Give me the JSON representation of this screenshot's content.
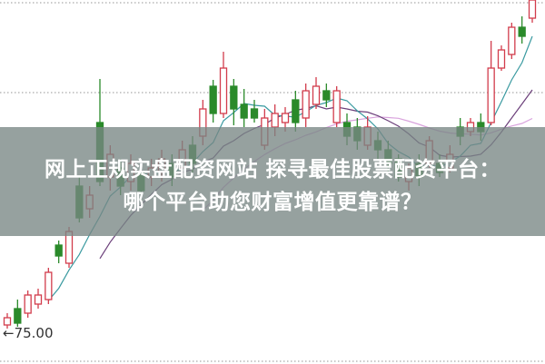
{
  "overlay": {
    "line1": "网上正规实盘配资网站 探寻最佳股票配资平台：",
    "line2": "哪个平台助您财富增值更靠谱？"
  },
  "chart_data": {
    "type": "candlestick",
    "title": "",
    "xlabel": "",
    "ylabel": "",
    "ylim": [
      71.7,
      111.8
    ],
    "grid": true,
    "grid_style": "dotted",
    "annotation": {
      "text": "←75.00",
      "value": 75.0
    },
    "colors": {
      "up": "#d23c4c",
      "down": "#2a8a2a",
      "ma5": "#3a9aa0",
      "ma10": "#6b3f7a",
      "ma20": "#d9a3dd",
      "grid": "#aaaaaa"
    },
    "moving_averages": [
      5,
      10,
      20
    ],
    "candles_ohlc": [
      [
        76.0,
        77.3,
        75.6,
        76.8
      ],
      [
        77.8,
        78.8,
        75.8,
        76.2
      ],
      [
        77.3,
        79.8,
        76.8,
        79.3
      ],
      [
        78.3,
        80.0,
        77.8,
        79.3
      ],
      [
        78.8,
        82.3,
        78.3,
        81.8
      ],
      [
        84.8,
        85.3,
        82.8,
        83.6
      ],
      [
        82.8,
        86.8,
        82.3,
        86.3
      ],
      [
        91.3,
        92.3,
        87.3,
        87.8
      ],
      [
        88.8,
        91.3,
        87.8,
        90.3
      ],
      [
        98.3,
        103.1,
        91.3,
        91.8
      ],
      [
        92.3,
        95.8,
        90.8,
        94.8
      ],
      [
        93.3,
        94.3,
        90.3,
        91.3
      ],
      [
        91.8,
        94.8,
        90.8,
        93.8
      ],
      [
        92.8,
        93.8,
        89.8,
        90.8
      ],
      [
        92.3,
        94.3,
        91.3,
        93.3
      ],
      [
        92.8,
        95.3,
        91.8,
        94.3
      ],
      [
        93.8,
        94.8,
        91.3,
        92.3
      ],
      [
        93.3,
        96.3,
        92.3,
        95.3
      ],
      [
        95.8,
        96.8,
        92.8,
        93.8
      ],
      [
        96.8,
        100.8,
        95.8,
        99.8
      ],
      [
        102.3,
        103.0,
        98.3,
        99.3
      ],
      [
        99.3,
        106.1,
        98.8,
        104.3
      ],
      [
        102.3,
        103.1,
        98.0,
        99.8
      ],
      [
        100.3,
        102.0,
        97.8,
        98.8
      ],
      [
        99.8,
        100.8,
        98.3,
        98.8
      ],
      [
        95.8,
        99.8,
        95.3,
        98.8
      ],
      [
        97.8,
        100.3,
        96.8,
        99.3
      ],
      [
        98.3,
        100.0,
        97.3,
        99.3
      ],
      [
        100.8,
        101.8,
        97.3,
        98.3
      ],
      [
        98.8,
        102.6,
        97.8,
        101.8
      ],
      [
        100.3,
        103.3,
        99.8,
        102.3
      ],
      [
        101.8,
        102.6,
        100.0,
        100.8
      ],
      [
        98.3,
        102.3,
        97.8,
        101.8
      ],
      [
        98.3,
        99.3,
        95.8,
        96.8
      ],
      [
        97.8,
        98.8,
        95.3,
        96.3
      ],
      [
        95.8,
        99.0,
        95.3,
        97.8
      ],
      [
        96.3,
        97.3,
        94.3,
        95.3
      ],
      [
        95.3,
        96.3,
        92.8,
        93.8
      ],
      [
        94.3,
        94.8,
        91.8,
        92.3
      ],
      [
        91.8,
        93.8,
        90.8,
        93.3
      ],
      [
        93.8,
        94.8,
        91.3,
        92.3
      ],
      [
        93.8,
        96.8,
        93.3,
        96.3
      ],
      [
        93.8,
        94.8,
        92.3,
        92.8
      ],
      [
        93.3,
        95.8,
        92.8,
        94.8
      ],
      [
        97.8,
        98.8,
        95.8,
        96.8
      ],
      [
        97.3,
        98.8,
        96.8,
        98.3
      ],
      [
        98.3,
        99.3,
        96.3,
        97.3
      ],
      [
        98.3,
        107.3,
        98.0,
        104.3
      ],
      [
        104.3,
        106.8,
        104.0,
        106.3
      ],
      [
        105.8,
        109.3,
        105.3,
        108.8
      ],
      [
        108.8,
        110.0,
        107.0,
        107.8
      ],
      [
        109.8,
        111.8,
        109.3,
        111.8
      ]
    ],
    "gridlines": [
      111.5,
      101.6,
      72.0
    ]
  }
}
